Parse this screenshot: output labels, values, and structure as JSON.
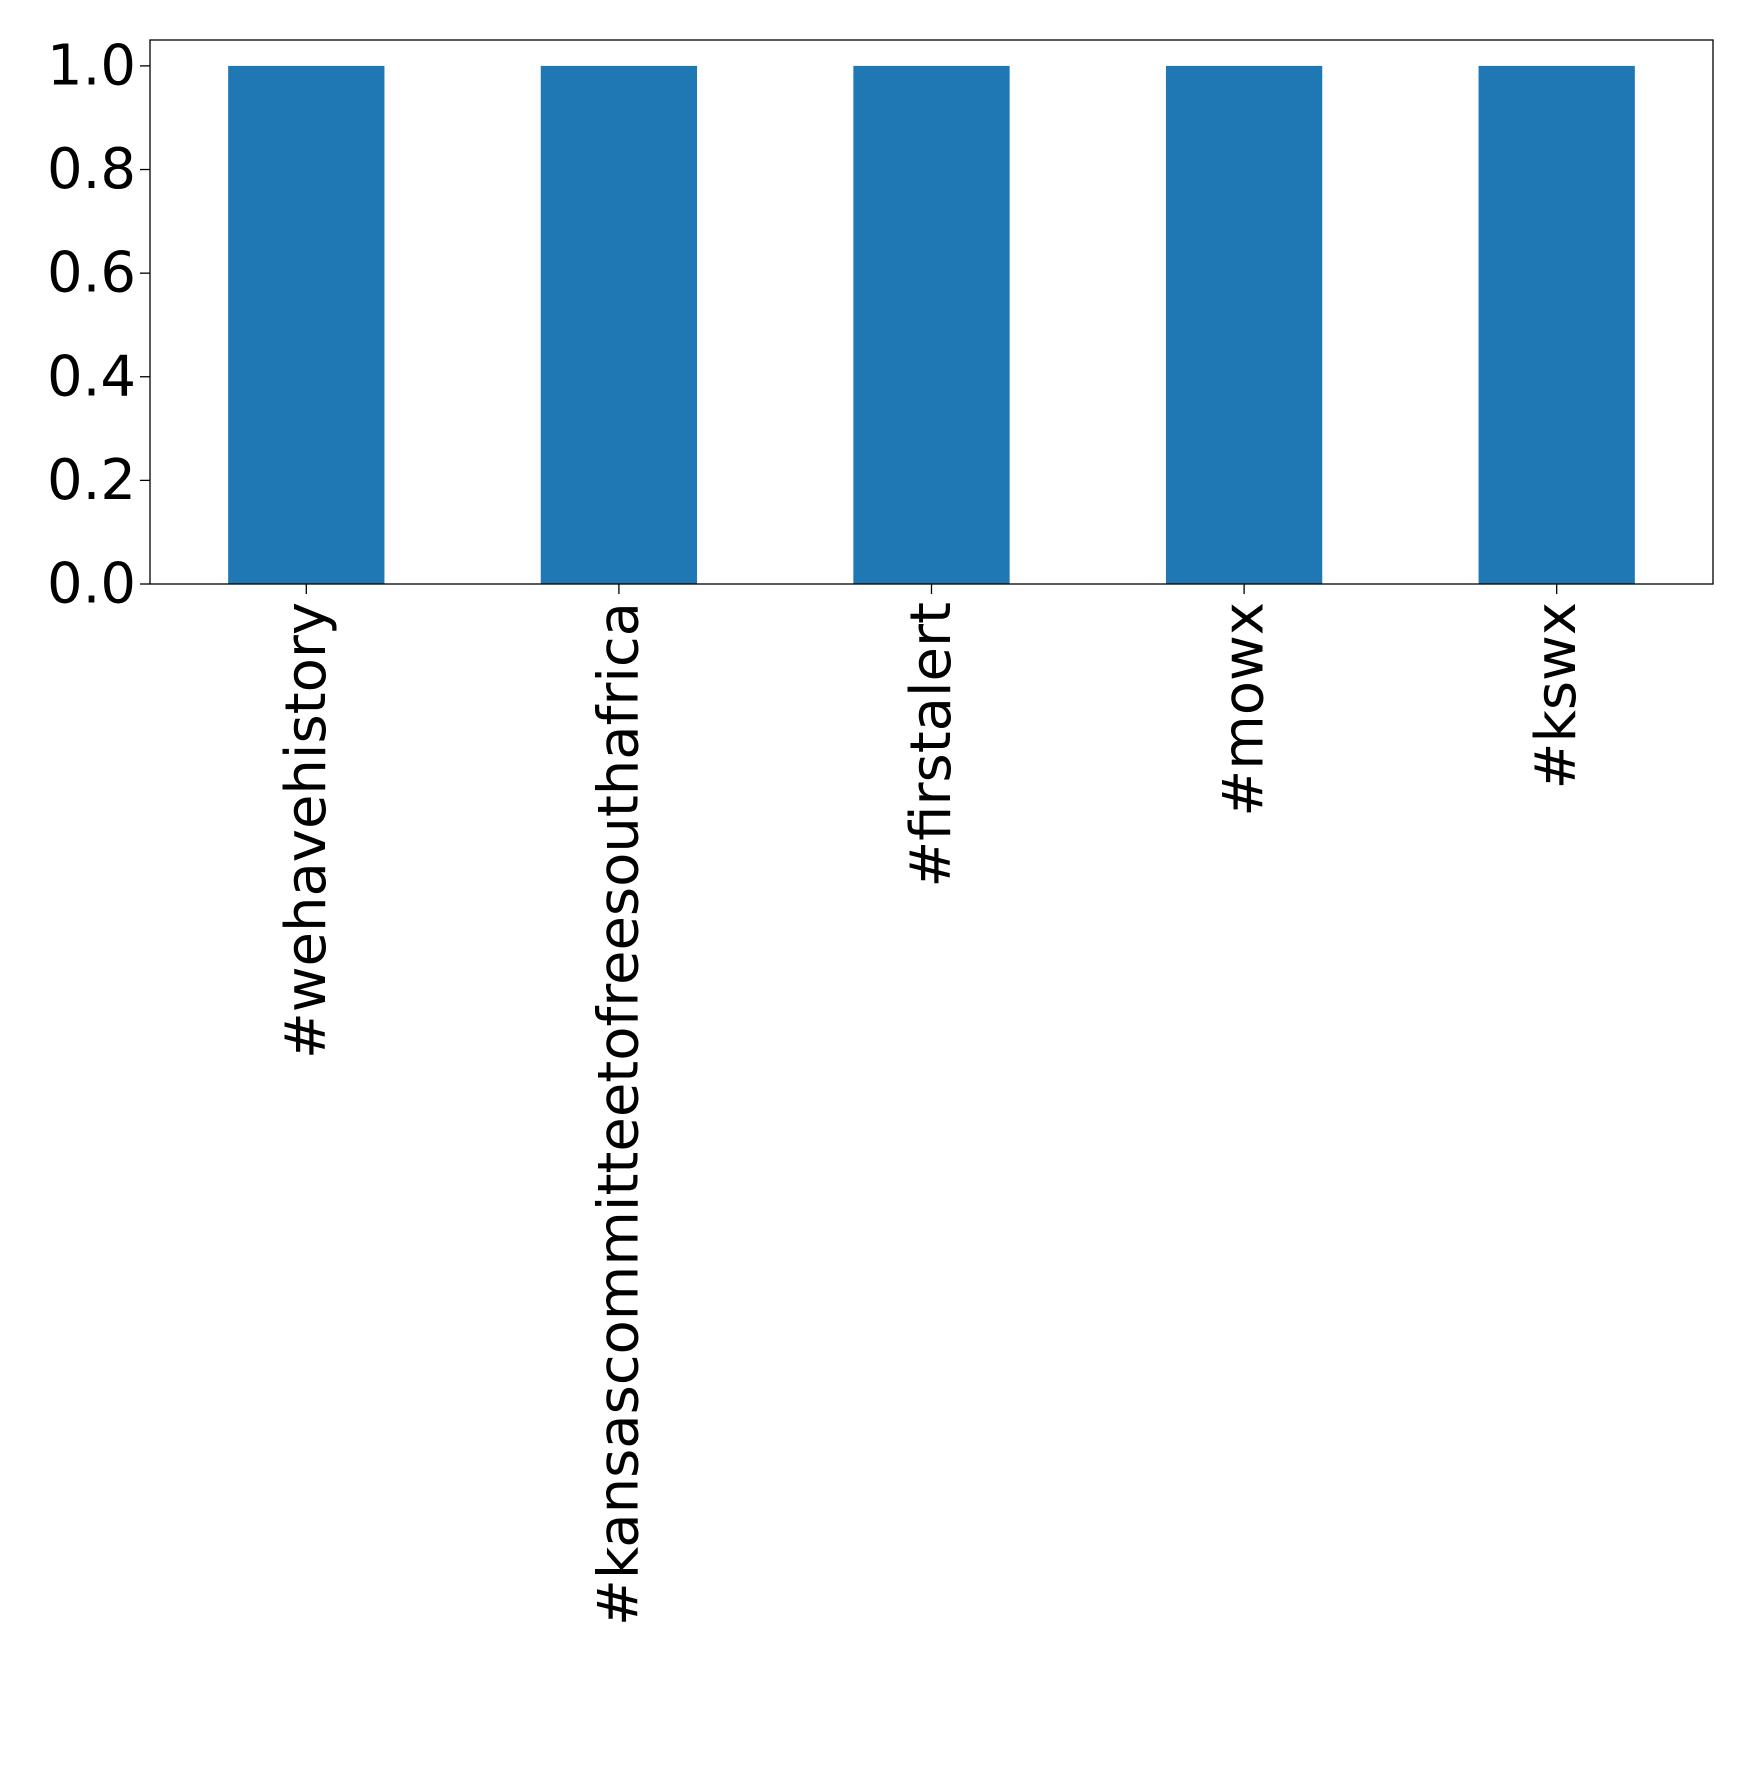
{
  "chart_data": {
    "type": "bar",
    "title": "",
    "xlabel": "",
    "ylabel": "",
    "categories": [
      "#wehavehistory",
      "#kansascommitteetofreesouthafrica",
      "#firstalert",
      "#mowx",
      "#kswx"
    ],
    "values": [
      1.0,
      1.0,
      1.0,
      1.0,
      1.0
    ],
    "ylim": [
      0,
      1.05
    ],
    "yticks": [
      "0.0",
      "0.2",
      "0.4",
      "0.6",
      "0.8",
      "1.0"
    ],
    "grid": false,
    "legend": "none",
    "bar_color": "#1f77b4"
  }
}
